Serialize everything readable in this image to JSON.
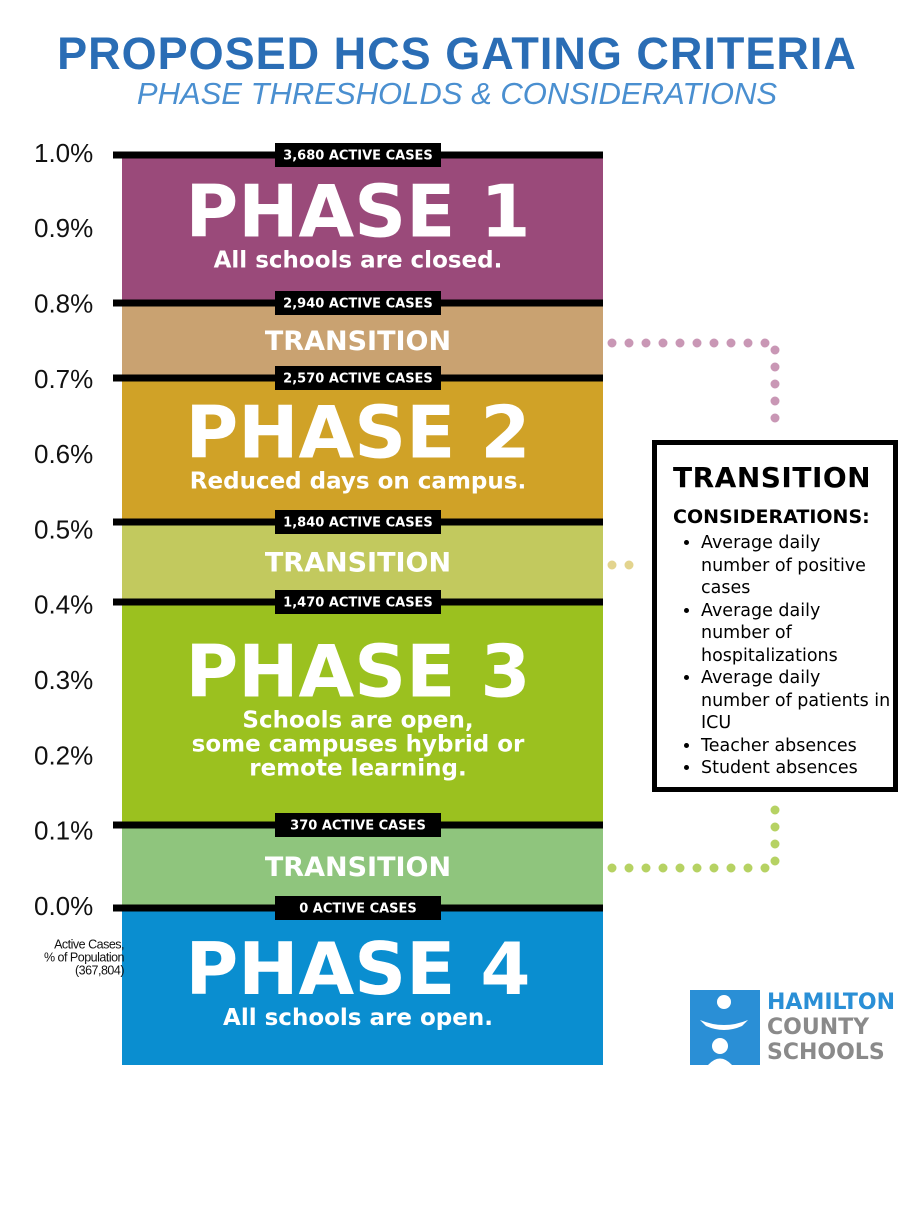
{
  "header": {
    "title": "PROPOSED HCS GATING CRITERIA",
    "subtitle": "PHASE THRESHOLDS & CONSIDERATIONS"
  },
  "axis": {
    "ticks": [
      "1.0%",
      "0.9%",
      "0.8%",
      "0.7%",
      "0.6%",
      "0.5%",
      "0.4%",
      "0.3%",
      "0.2%",
      "0.1%",
      "0.0%"
    ],
    "label": [
      "Active Cases,",
      "% of Population",
      "(367,804)"
    ]
  },
  "thresholds": [
    "3,680 ACTIVE CASES",
    "2,940 ACTIVE CASES",
    "2,570 ACTIVE CASES",
    "1,840 ACTIVE CASES",
    "1,470 ACTIVE CASES",
    "370 ACTIVE CASES",
    "0 ACTIVE CASES"
  ],
  "bands": [
    {
      "title": "PHASE 1",
      "subtitle": [
        "All schools are closed."
      ]
    },
    {
      "title": "TRANSITION"
    },
    {
      "title": "PHASE 2",
      "subtitle": [
        "Reduced days on campus."
      ]
    },
    {
      "title": "TRANSITION"
    },
    {
      "title": "PHASE 3",
      "subtitle": [
        "Schools are open,",
        "some campuses hybrid or",
        "remote learning."
      ]
    },
    {
      "title": "TRANSITION"
    },
    {
      "title": "PHASE 4",
      "subtitle": [
        "All schools are open."
      ]
    }
  ],
  "considerations": {
    "title": "TRANSITION",
    "heading": "CONSIDERATIONS:",
    "items": [
      "Average daily number of positive cases",
      "Average daily number of hospitalizations",
      "Average daily number of patients in ICU",
      "Teacher absences",
      "Student absences"
    ]
  },
  "logo": [
    "HAMILTON",
    "COUNTY",
    "SCHOOLS"
  ]
}
